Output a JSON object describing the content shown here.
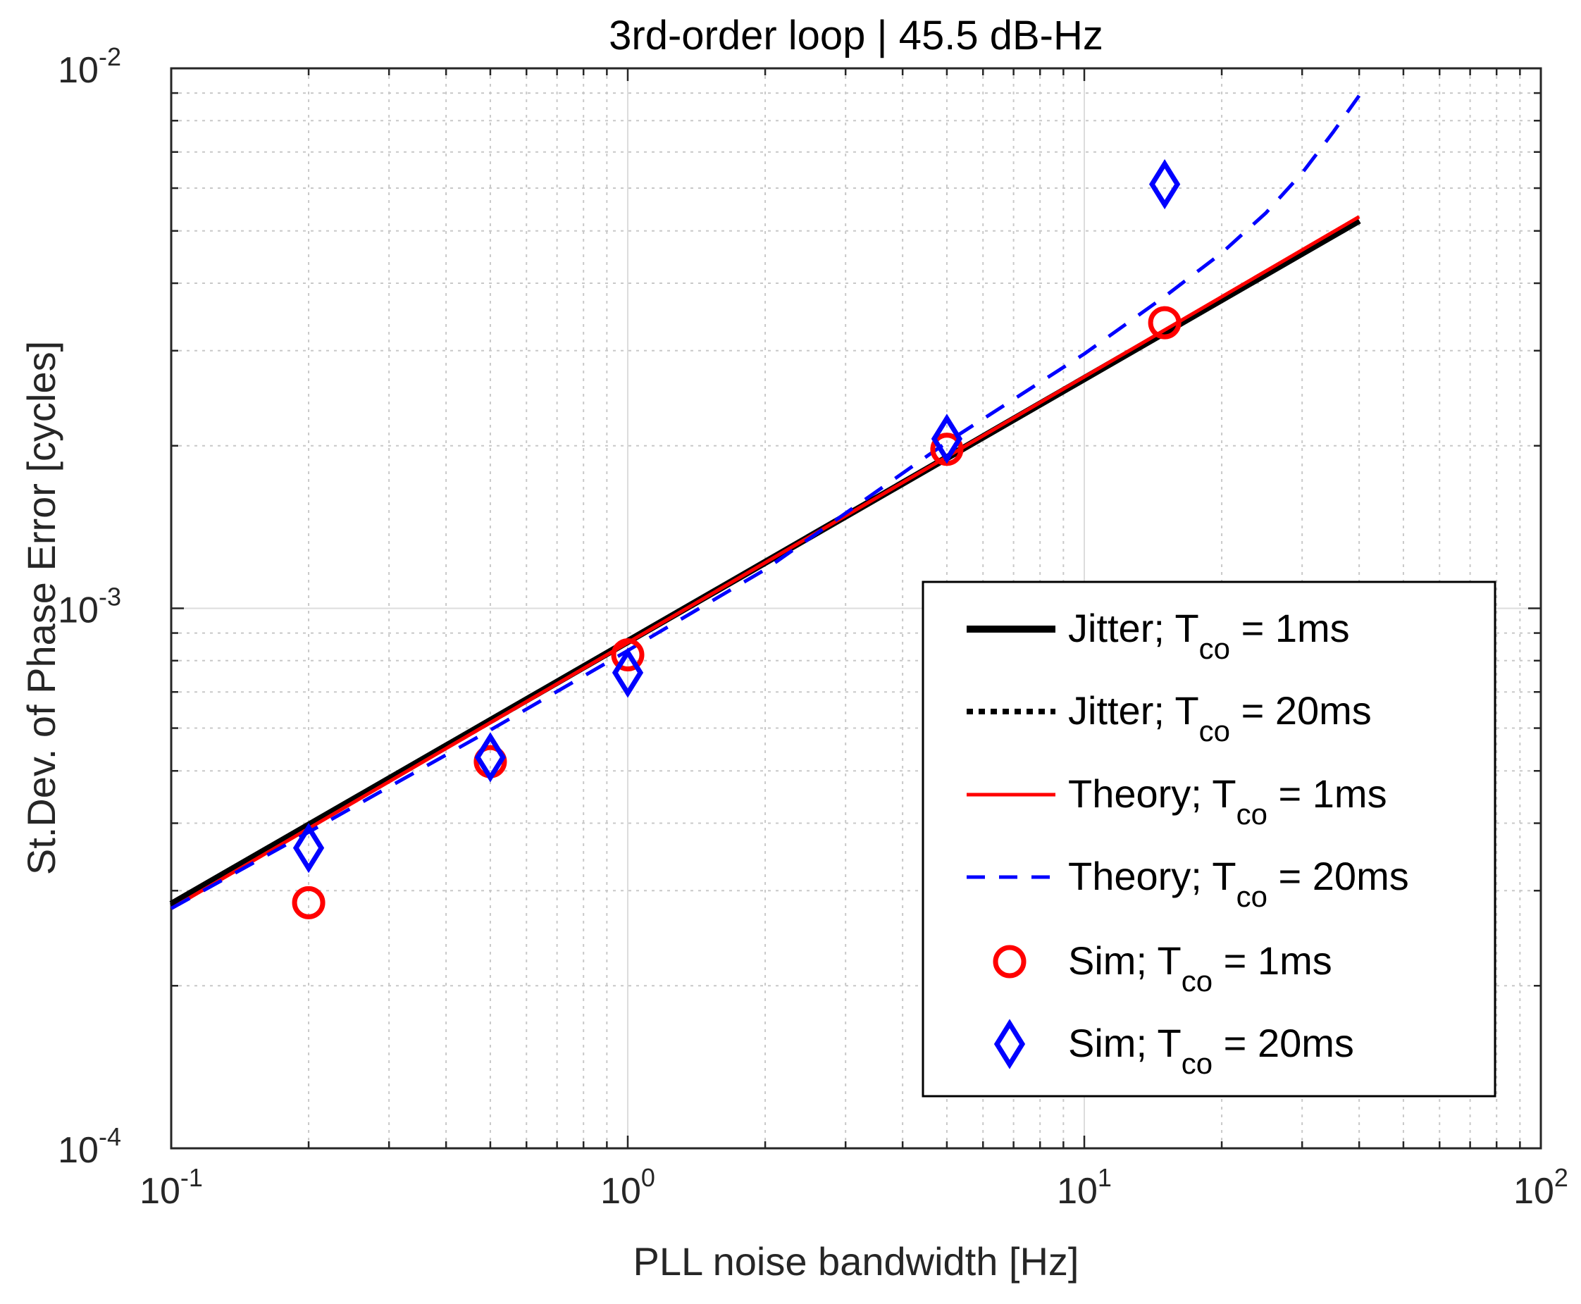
{
  "chart_data": {
    "type": "line",
    "title": "3rd-order loop  |  45.5 dB-Hz",
    "xlabel": "PLL noise bandwidth [Hz]",
    "ylabel": "St.Dev. of Phase Error [cycles]",
    "xscale": "log",
    "yscale": "log",
    "xlim": [
      0.1,
      100
    ],
    "ylim": [
      0.0001,
      0.01
    ],
    "grid": true,
    "x_ticks": [
      {
        "base": "10",
        "exp": "-1"
      },
      {
        "base": "10",
        "exp": "0"
      },
      {
        "base": "10",
        "exp": "1"
      },
      {
        "base": "10",
        "exp": "2"
      }
    ],
    "y_ticks": [
      {
        "base": "10",
        "exp": "-4"
      },
      {
        "base": "10",
        "exp": "-3"
      },
      {
        "base": "10",
        "exp": "-2"
      }
    ],
    "legend_position": "bottom-right",
    "series": [
      {
        "name": "Jitter; T",
        "sub": "co",
        "suffix": " = 1ms",
        "style": "line",
        "color": "#000000",
        "dash": "solid",
        "x": [
          0.1,
          40
        ],
        "y": [
          0.000283,
          0.00523
        ]
      },
      {
        "name": "Jitter; T",
        "sub": "co",
        "suffix": " = 20ms",
        "style": "line",
        "color": "#000000",
        "dash": "dotted",
        "x": [
          0.1,
          40
        ],
        "y": [
          0.000281,
          0.00526
        ]
      },
      {
        "name": "Theory; T",
        "sub": "co",
        "suffix": " = 1ms",
        "style": "line",
        "color": "#ff0000",
        "dash": "solid",
        "x": [
          0.1,
          40
        ],
        "y": [
          0.000278,
          0.00531
        ]
      },
      {
        "name": "Theory; T",
        "sub": "co",
        "suffix": " = 20ms",
        "style": "line",
        "color": "#0000ff",
        "dash": "dashed",
        "x": [
          0.1,
          0.2,
          0.5,
          1,
          2,
          5,
          10,
          15,
          20,
          25,
          30,
          35,
          40
        ],
        "y": [
          0.000278,
          0.000385,
          0.000595,
          0.000835,
          0.00118,
          0.00203,
          0.00296,
          0.00378,
          0.00455,
          0.0054,
          0.0064,
          0.0076,
          0.0089
        ]
      },
      {
        "name": "Sim; T",
        "sub": "co",
        "suffix": " = 1ms",
        "style": "marker",
        "marker": "circle",
        "color": "#ff0000",
        "x": [
          0.2,
          0.5,
          1,
          5,
          15
        ],
        "y": [
          0.000285,
          0.00052,
          0.00082,
          0.00197,
          0.00338
        ]
      },
      {
        "name": "Sim; T",
        "sub": "co",
        "suffix": " = 20ms",
        "style": "marker",
        "marker": "diamond",
        "color": "#0000ff",
        "x": [
          0.2,
          0.5,
          1,
          5,
          15
        ],
        "y": [
          0.00036,
          0.00053,
          0.00076,
          0.00206,
          0.0061
        ]
      }
    ]
  }
}
